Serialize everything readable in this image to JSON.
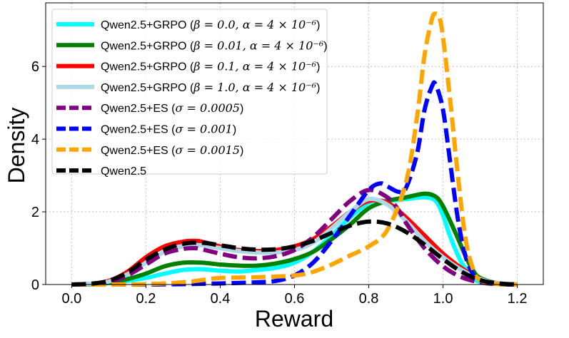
{
  "chart_data": {
    "type": "line",
    "title": "",
    "xlabel": "Reward",
    "ylabel": "Density",
    "xlim": [
      -0.07,
      1.27
    ],
    "ylim": [
      0,
      7.75
    ],
    "xticks": [
      0.0,
      0.2,
      0.4,
      0.6,
      0.8,
      1.0,
      1.2
    ],
    "xtick_labels": [
      "0.0",
      "0.2",
      "0.4",
      "0.6",
      "0.8",
      "1.0",
      "1.2"
    ],
    "yticks": [
      0,
      2,
      4,
      6
    ],
    "ytick_labels": [
      "0",
      "2",
      "4",
      "6"
    ],
    "grid": true,
    "legend_position": "top-left",
    "series": [
      {
        "name": "Qwen2.5+GRPO (β=0.0, α=4×10⁻⁶)",
        "legend_prefix": "Qwen2.5+GRPO (",
        "legend_math": "β = 0.0, α = 4 × 10⁻⁶",
        "legend_suffix": ")",
        "color": "#00ffff",
        "style": "solid",
        "x": [
          0.0,
          0.05,
          0.1,
          0.15,
          0.2,
          0.25,
          0.3,
          0.35,
          0.4,
          0.45,
          0.5,
          0.55,
          0.6,
          0.65,
          0.7,
          0.75,
          0.8,
          0.82,
          0.85,
          0.9,
          0.95,
          0.98,
          1.0,
          1.02,
          1.05,
          1.08,
          1.1,
          1.15,
          1.2
        ],
        "y": [
          0.0,
          0.01,
          0.04,
          0.1,
          0.18,
          0.3,
          0.4,
          0.42,
          0.38,
          0.36,
          0.4,
          0.46,
          0.6,
          0.9,
          1.35,
          1.85,
          2.25,
          2.3,
          2.3,
          2.35,
          2.4,
          2.3,
          1.9,
          1.3,
          0.6,
          0.2,
          0.07,
          0.01,
          0.0
        ]
      },
      {
        "name": "Qwen2.5+GRPO (β=0.01, α=4×10⁻⁶)",
        "legend_prefix": "Qwen2.5+GRPO (",
        "legend_math": "β = 0.01, α = 4 × 10⁻⁶",
        "legend_suffix": ")",
        "color": "#008000",
        "style": "solid",
        "x": [
          0.0,
          0.05,
          0.1,
          0.15,
          0.2,
          0.25,
          0.3,
          0.35,
          0.4,
          0.45,
          0.5,
          0.55,
          0.6,
          0.65,
          0.7,
          0.75,
          0.8,
          0.85,
          0.9,
          0.95,
          0.98,
          1.0,
          1.03,
          1.06,
          1.08,
          1.1,
          1.15,
          1.2
        ],
        "y": [
          0.0,
          0.01,
          0.05,
          0.15,
          0.3,
          0.5,
          0.6,
          0.6,
          0.55,
          0.52,
          0.52,
          0.58,
          0.7,
          0.9,
          1.25,
          1.65,
          2.1,
          2.3,
          2.4,
          2.5,
          2.42,
          2.15,
          1.5,
          0.8,
          0.4,
          0.18,
          0.03,
          0.0
        ]
      },
      {
        "name": "Qwen2.5+GRPO (β=0.1, α=4×10⁻⁶)",
        "legend_prefix": "Qwen2.5+GRPO (",
        "legend_math": "β = 0.1, α = 4 × 10⁻⁶",
        "legend_suffix": ")",
        "color": "#ff0000",
        "style": "solid",
        "x": [
          0.0,
          0.05,
          0.1,
          0.15,
          0.2,
          0.25,
          0.3,
          0.33,
          0.35,
          0.4,
          0.45,
          0.5,
          0.55,
          0.6,
          0.65,
          0.7,
          0.75,
          0.8,
          0.85,
          0.9,
          0.95,
          1.0,
          1.05,
          1.1,
          1.15,
          1.2
        ],
        "y": [
          0.0,
          0.02,
          0.1,
          0.35,
          0.75,
          1.05,
          1.18,
          1.2,
          1.18,
          1.05,
          0.95,
          0.92,
          0.95,
          1.05,
          1.25,
          1.6,
          2.0,
          2.3,
          2.25,
          1.85,
          1.35,
          0.85,
          0.45,
          0.15,
          0.03,
          0.0
        ]
      },
      {
        "name": "Qwen2.5+GRPO (β=1.0, α=4×10⁻⁶)",
        "legend_prefix": "Qwen2.5+GRPO (",
        "legend_math": "β = 1.0, α = 4 × 10⁻⁶",
        "legend_suffix": ")",
        "color": "#add8e6",
        "style": "solid",
        "x": [
          0.0,
          0.05,
          0.1,
          0.15,
          0.2,
          0.25,
          0.3,
          0.35,
          0.4,
          0.45,
          0.5,
          0.55,
          0.6,
          0.65,
          0.7,
          0.75,
          0.8,
          0.85,
          0.9,
          0.95,
          1.0,
          1.05,
          1.1,
          1.15,
          1.2
        ],
        "y": [
          0.0,
          0.02,
          0.08,
          0.28,
          0.6,
          0.9,
          1.05,
          1.08,
          1.0,
          0.92,
          0.88,
          0.88,
          0.95,
          1.15,
          1.55,
          2.0,
          2.35,
          2.2,
          1.75,
          1.2,
          0.75,
          0.4,
          0.15,
          0.03,
          0.0
        ]
      },
      {
        "name": "Qwen2.5+ES (σ=0.0005)",
        "legend_prefix": "Qwen2.5+ES (",
        "legend_math": "σ = 0.0005",
        "legend_suffix": ")",
        "color": "#800080",
        "style": "dashed",
        "x": [
          0.0,
          0.05,
          0.1,
          0.15,
          0.2,
          0.25,
          0.3,
          0.33,
          0.35,
          0.4,
          0.45,
          0.5,
          0.55,
          0.6,
          0.65,
          0.7,
          0.75,
          0.8,
          0.85,
          0.88,
          0.9,
          0.95,
          1.0,
          1.05,
          1.1,
          1.15,
          1.2
        ],
        "y": [
          0.0,
          0.01,
          0.06,
          0.25,
          0.55,
          0.85,
          0.98,
          1.0,
          0.97,
          0.85,
          0.75,
          0.72,
          0.78,
          0.95,
          1.3,
          1.8,
          2.3,
          2.6,
          2.4,
          2.05,
          1.7,
          1.0,
          0.5,
          0.2,
          0.06,
          0.01,
          0.0
        ]
      },
      {
        "name": "Qwen2.5+ES (σ=0.001)",
        "legend_prefix": "Qwen2.5+ES (",
        "legend_math": "σ = 0.001",
        "legend_suffix": ")",
        "color": "#0000ff",
        "style": "dashed",
        "x": [
          0.0,
          0.1,
          0.2,
          0.3,
          0.4,
          0.5,
          0.55,
          0.6,
          0.65,
          0.7,
          0.75,
          0.8,
          0.83,
          0.85,
          0.88,
          0.9,
          0.93,
          0.95,
          0.97,
          0.98,
          1.0,
          1.02,
          1.04,
          1.06,
          1.08,
          1.1,
          1.15,
          1.2
        ],
        "y": [
          0.0,
          0.0,
          0.0,
          0.01,
          0.03,
          0.06,
          0.1,
          0.25,
          0.6,
          1.2,
          1.9,
          2.6,
          2.78,
          2.7,
          2.55,
          2.65,
          3.6,
          4.8,
          5.45,
          5.5,
          4.8,
          3.3,
          1.8,
          0.8,
          0.3,
          0.1,
          0.01,
          0.0
        ]
      },
      {
        "name": "Qwen2.5+ES (σ=0.0015)",
        "legend_prefix": "Qwen2.5+ES (",
        "legend_math": "σ = 0.0015",
        "legend_suffix": ")",
        "color": "#ffa500",
        "style": "dashed",
        "x": [
          0.0,
          0.1,
          0.2,
          0.3,
          0.35,
          0.4,
          0.5,
          0.6,
          0.65,
          0.7,
          0.75,
          0.8,
          0.85,
          0.9,
          0.93,
          0.95,
          0.97,
          0.98,
          0.99,
          1.0,
          1.02,
          1.04,
          1.06,
          1.08,
          1.1,
          1.15,
          1.2
        ],
        "y": [
          0.0,
          0.0,
          0.01,
          0.06,
          0.12,
          0.18,
          0.2,
          0.25,
          0.35,
          0.55,
          0.8,
          1.05,
          1.5,
          2.8,
          4.6,
          6.3,
          7.3,
          7.45,
          7.35,
          6.8,
          5.0,
          3.0,
          1.3,
          0.45,
          0.12,
          0.01,
          0.0
        ]
      },
      {
        "name": "Qwen2.5",
        "legend_prefix": "Qwen2.5",
        "legend_math": "",
        "legend_suffix": "",
        "color": "#000000",
        "style": "dashed",
        "x": [
          0.0,
          0.05,
          0.1,
          0.15,
          0.2,
          0.25,
          0.3,
          0.35,
          0.4,
          0.45,
          0.5,
          0.55,
          0.6,
          0.65,
          0.7,
          0.75,
          0.8,
          0.85,
          0.9,
          0.95,
          1.0,
          1.05,
          1.1,
          1.15,
          1.2
        ],
        "y": [
          0.0,
          0.02,
          0.1,
          0.33,
          0.68,
          0.96,
          1.12,
          1.15,
          1.08,
          1.0,
          0.96,
          0.97,
          1.05,
          1.2,
          1.42,
          1.62,
          1.73,
          1.68,
          1.45,
          1.1,
          0.7,
          0.35,
          0.12,
          0.03,
          0.0
        ]
      }
    ]
  }
}
